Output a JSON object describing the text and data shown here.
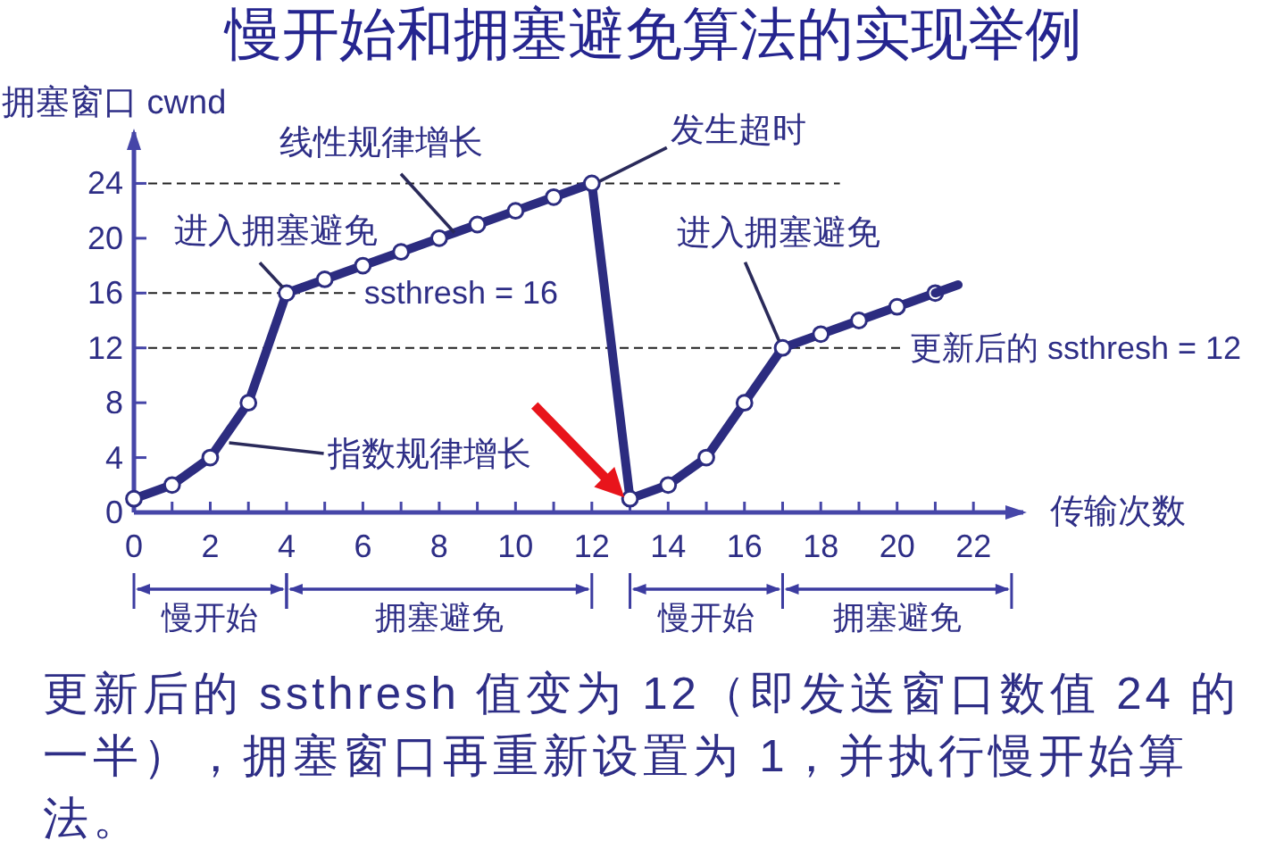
{
  "chart_data": {
    "type": "line",
    "title": "慢开始和拥塞避免算法的实现举例",
    "xlabel": "传输次数",
    "ylabel": "拥塞窗口 cwnd",
    "xlim": [
      0,
      23.4
    ],
    "xticks": [
      0,
      {
        "value": 1,
        "label": null
      },
      2,
      {
        "value": 3,
        "label": null
      },
      4,
      {
        "value": 5,
        "label": null
      },
      6,
      {
        "value": 7,
        "label": null
      },
      8,
      {
        "value": 9,
        "label": null
      },
      10,
      {
        "value": 11,
        "label": null
      },
      12,
      {
        "value": 13,
        "label": null
      },
      14,
      {
        "value": 15,
        "label": null
      },
      16,
      {
        "value": 17,
        "label": null
      },
      18,
      {
        "value": 19,
        "label": null
      },
      20,
      {
        "value": 21,
        "label": null
      },
      22
    ],
    "ylim": [
      0,
      28
    ],
    "yticks": [
      0,
      4,
      8,
      12,
      16,
      20,
      24
    ],
    "marker": "circle",
    "line_style": "solid",
    "series": [
      {
        "color": "#2c2c80",
        "x": [
          0,
          1,
          2,
          3,
          4,
          5,
          6,
          7,
          8,
          9,
          10,
          11,
          12,
          13,
          14,
          15,
          16,
          17,
          18,
          19,
          20,
          21
        ],
        "values": [
          1,
          2,
          4,
          8,
          16,
          17,
          18,
          19,
          20,
          21,
          22,
          23,
          24,
          1,
          2,
          4,
          8,
          12,
          13,
          14,
          15,
          16
        ]
      },
      {
        "color": "#2c2c80",
        "marker": "none",
        "x": [
          21,
          21.6
        ],
        "values": [
          16,
          16.6
        ]
      }
    ],
    "ref_lines": [
      {
        "axis": "y",
        "value": 24,
        "line_style": "dashed",
        "color": "#222222"
      },
      {
        "axis": "y",
        "value": 16,
        "label": "ssthresh = 16",
        "line_style": "dashed",
        "color": "#222222"
      },
      {
        "axis": "y",
        "value": 12,
        "label": "更新后的 ssthresh = 12",
        "line_style": "dashed",
        "color": "#222222"
      }
    ],
    "annotations": [
      {
        "text": "线性规律增长",
        "x": 8.4,
        "y": 20.4
      },
      {
        "text": "发生超时",
        "x": 12,
        "y": 24
      },
      {
        "text": "进入拥塞避免",
        "x": 4,
        "y": 16
      },
      {
        "text": "进入拥塞避免",
        "x": 17,
        "y": 12
      },
      {
        "text": "指数规律增长",
        "x": 2.4,
        "y": 5.6
      },
      "慢开始",
      "拥塞避免",
      "慢开始",
      "拥塞避免",
      "更新后的 ssthresh 值变为 12（即发送窗口数值 24 的一半），拥塞窗口再重新设置为 1，并执行慢开始算法。"
    ]
  }
}
